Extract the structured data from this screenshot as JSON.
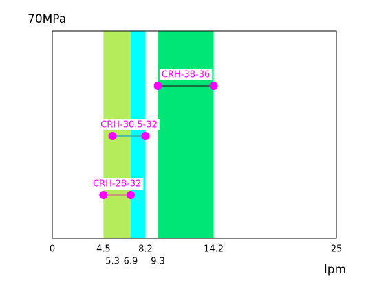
{
  "chart_data": {
    "type": "dumbbell",
    "y_label": "70MPa",
    "x_label": "lpm",
    "xlim": [
      0,
      25
    ],
    "xticks": [
      0,
      4.5,
      8.2,
      14.2,
      25
    ],
    "xticks_second_row": [
      5.3,
      6.9,
      9.3
    ],
    "bands": [
      {
        "start": 4.5,
        "end": 6.9,
        "color": "#b4ec5c"
      },
      {
        "start": 6.9,
        "end": 8.2,
        "color": "#00ffff"
      },
      {
        "start": 9.3,
        "end": 14.2,
        "color": "#00e676"
      }
    ],
    "series": [
      {
        "name": "CRH-38-36",
        "start": 9.3,
        "end": 14.2,
        "color": "#ff00ff",
        "line_color": "#1a4a2a"
      },
      {
        "name": "CRH-30.5-32",
        "start": 5.3,
        "end": 8.2,
        "color": "#ff00ff",
        "line_color": "#30b0b0"
      },
      {
        "name": "CRH-28-32",
        "start": 4.5,
        "end": 6.9,
        "color": "#ff00ff",
        "line_color": "#d08080"
      }
    ]
  }
}
